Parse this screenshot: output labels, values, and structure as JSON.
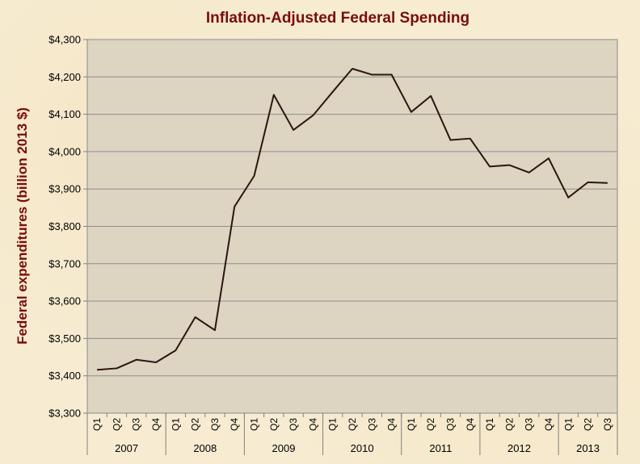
{
  "chart_data": {
    "type": "line",
    "title": "Inflation-Adjusted Federal Spending",
    "xlabel": "",
    "ylabel": "Federal expenditures (billion 2013 $)",
    "ylim": [
      3300,
      4300
    ],
    "ytick_step": 100,
    "ytick_labels": [
      "$3,300",
      "$3,400",
      "$3,500",
      "$3,600",
      "$3,700",
      "$3,800",
      "$3,900",
      "$4,000",
      "$4,100",
      "$4,200",
      "$4,300"
    ],
    "grid": true,
    "legend": "none",
    "years": [
      {
        "label": "2007",
        "quarters": [
          "Q1",
          "Q2",
          "Q3",
          "Q4"
        ]
      },
      {
        "label": "2008",
        "quarters": [
          "Q1",
          "Q2",
          "Q3",
          "Q4"
        ]
      },
      {
        "label": "2009",
        "quarters": [
          "Q1",
          "Q2",
          "Q3",
          "Q4"
        ]
      },
      {
        "label": "2010",
        "quarters": [
          "Q1",
          "Q2",
          "Q3",
          "Q4"
        ]
      },
      {
        "label": "2011",
        "quarters": [
          "Q1",
          "Q2",
          "Q3",
          "Q4"
        ]
      },
      {
        "label": "2012",
        "quarters": [
          "Q1",
          "Q2",
          "Q3",
          "Q4"
        ]
      },
      {
        "label": "2013",
        "quarters": [
          "Q1",
          "Q2",
          "Q3"
        ]
      }
    ],
    "series": [
      {
        "values": [
          3416,
          3420,
          3443,
          3436,
          3468,
          3557,
          3522,
          3853,
          3935,
          4152,
          4058,
          4097,
          4160,
          4222,
          4206,
          4206,
          4106,
          4149,
          4031,
          4035,
          3960,
          3964,
          3944,
          3982,
          3877,
          3918,
          3916
        ]
      }
    ],
    "colors": {
      "line": "#2b1612",
      "plot_bg": "#ddd4c2",
      "grid": "#8e8e8e",
      "title": "#7a0c0c",
      "ylabel": "#7a0c0c"
    }
  }
}
